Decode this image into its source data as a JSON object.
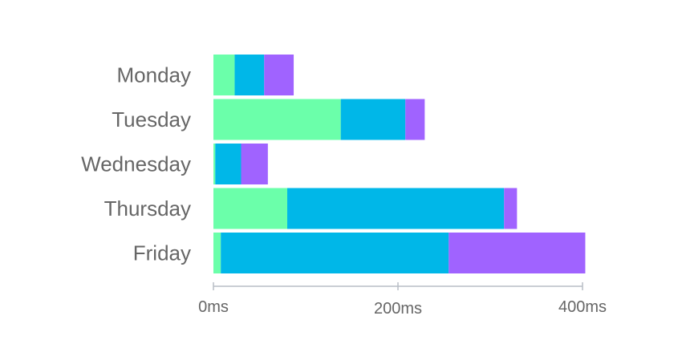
{
  "chart_data": {
    "type": "bar",
    "orientation": "horizontal",
    "stacked": true,
    "categories": [
      "Monday",
      "Tuesday",
      "Wednesday",
      "Thursday",
      "Friday"
    ],
    "series": [
      {
        "color": "#6bffaa",
        "values": [
          23,
          138,
          2,
          80,
          8
        ]
      },
      {
        "color": "#00b7e8",
        "values": [
          32,
          70,
          28,
          235,
          247
        ]
      },
      {
        "color": "#a063ff",
        "values": [
          32,
          21,
          29,
          14,
          148
        ]
      }
    ],
    "xticks": [
      {
        "value": 0,
        "label": "0ms"
      },
      {
        "value": 200,
        "label": "200ms"
      },
      {
        "value": 400,
        "label": "400ms"
      }
    ],
    "xlim": [
      0,
      400
    ],
    "grid": false,
    "legend": "none"
  }
}
